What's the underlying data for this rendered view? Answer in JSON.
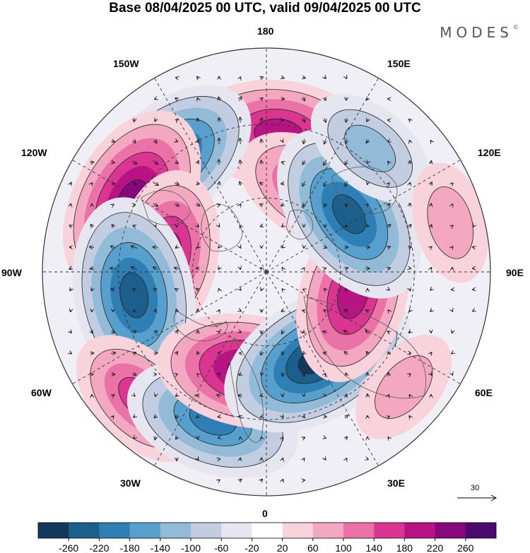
{
  "title": "Base 08/04/2025 00 UTC, valid 09/04/2025 00 UTC",
  "brand": {
    "name": "MODES",
    "mark": "©"
  },
  "longitude_labels": {
    "top": "180",
    "bottom": "0",
    "left": "90W",
    "right": "90E",
    "upper_left_1": "150W",
    "upper_left_2": "120W",
    "upper_right_1": "150E",
    "upper_right_2": "120E",
    "lower_left_1": "60W",
    "lower_left_2": "30W",
    "lower_right_1": "60E",
    "lower_right_2": "30E"
  },
  "reference_vector": {
    "label": "30"
  },
  "colorbar": {
    "ticks": [
      "-260",
      "-220",
      "-180",
      "-140",
      "-100",
      "-60",
      "-20",
      "20",
      "60",
      "100",
      "140",
      "180",
      "220",
      "260"
    ],
    "colors": [
      "#12395a",
      "#1c5f8d",
      "#2f7fb4",
      "#579fcc",
      "#92bbd8",
      "#c2cde2",
      "#e6e6f0",
      "#ffffff",
      "#f9d3dc",
      "#f3a7c0",
      "#ea72a7",
      "#db3592",
      "#b81382",
      "#85087c",
      "#4a0a6e"
    ]
  },
  "anomaly_centers": [
    {
      "lon": 175,
      "dist": 0.62,
      "value": 200
    },
    {
      "lon": 150,
      "dist": 0.42,
      "value": 160
    },
    {
      "lon": -140,
      "dist": 0.66,
      "value": -220
    },
    {
      "lon": -118,
      "dist": 0.68,
      "value": 240
    },
    {
      "lon": -100,
      "dist": 0.45,
      "value": 180
    },
    {
      "lon": -80,
      "dist": 0.6,
      "value": -250
    },
    {
      "lon": -45,
      "dist": 0.8,
      "value": 140
    },
    {
      "lon": -20,
      "dist": 0.7,
      "value": -200
    },
    {
      "lon": -10,
      "dist": 0.45,
      "value": 220
    },
    {
      "lon": 30,
      "dist": 0.45,
      "value": -260
    },
    {
      "lon": 75,
      "dist": 0.4,
      "value": 200
    },
    {
      "lon": 125,
      "dist": 0.45,
      "value": -230
    },
    {
      "lon": 140,
      "dist": 0.72,
      "value": -100
    },
    {
      "lon": 105,
      "dist": 0.85,
      "value": 60
    },
    {
      "lon": 50,
      "dist": 0.8,
      "value": 60
    }
  ]
}
